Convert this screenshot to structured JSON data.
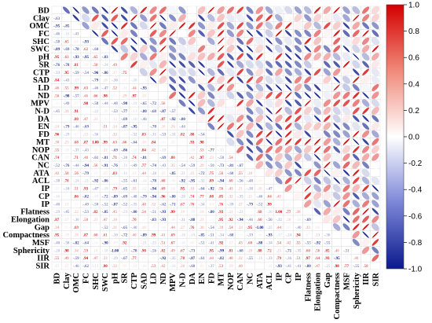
{
  "chart_data": {
    "type": "heatmap",
    "variables": [
      "BD",
      "Clay",
      "OMC",
      "FC",
      "SHC",
      "SWC",
      "pH",
      "SR",
      "CTP",
      "SAD",
      "LD",
      "ND",
      "MPV",
      "N-D",
      "DA",
      "EN",
      "FD",
      "MT",
      "NOP",
      "CAN",
      "NC",
      "ATA",
      "ACL",
      "IP",
      "CP",
      "IP",
      "Flatness",
      "Elongation",
      "Gap",
      "Compactness",
      "MSF",
      "Sphericity",
      "IIR",
      "SIR"
    ],
    "colorbar": {
      "range": [
        -1.0,
        1.0
      ],
      "ticks": [
        1.0,
        0.8,
        0.6,
        0.4,
        0.2,
        0.0,
        -0.2,
        -0.4,
        -0.6,
        -0.8,
        -1.0
      ],
      "tick_labels": [
        "1.0",
        "0.8",
        "0.6",
        "0.4",
        "0.2",
        "0.0",
        "-0.2",
        "-0.4",
        "-0.6",
        "-0.8",
        "-1.0"
      ],
      "colors": {
        "negative": "#0a1a8c",
        "neutral": "#ffffff",
        "positive": "#d40000"
      }
    },
    "lower_triangle": "numbers",
    "upper_triangle": "ellipses",
    "significance_marks": "asterisks"
  }
}
